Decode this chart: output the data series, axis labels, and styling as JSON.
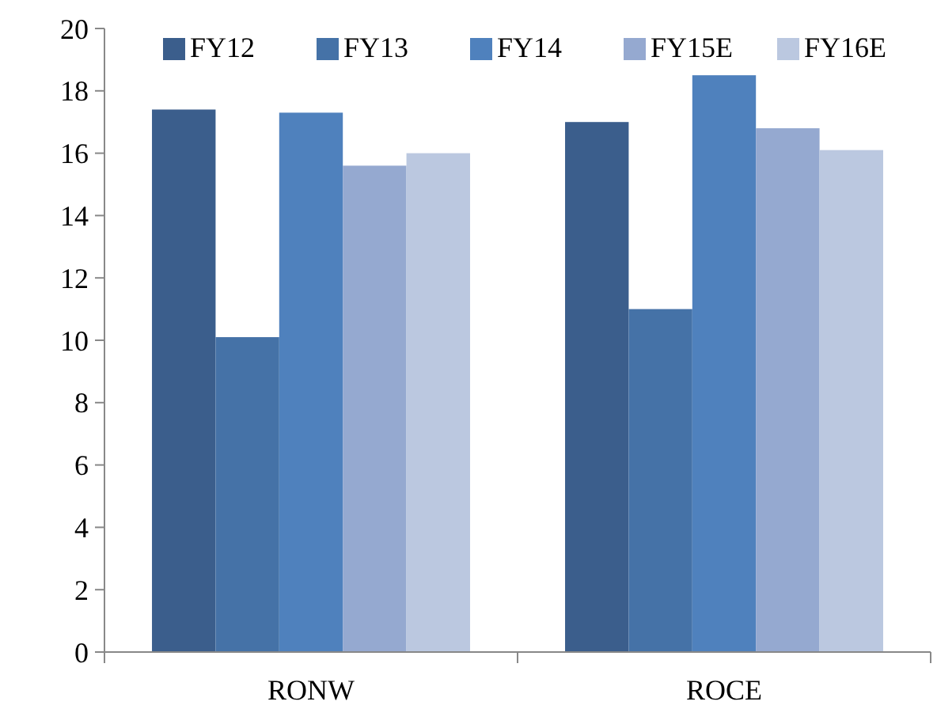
{
  "chart_data": {
    "type": "bar",
    "categories": [
      "RONW",
      "ROCE"
    ],
    "series": [
      {
        "name": "FY12",
        "color": "#3b5e8c",
        "values": [
          17.4,
          17.0
        ]
      },
      {
        "name": "FY13",
        "color": "#4572a7",
        "values": [
          10.1,
          11.0
        ]
      },
      {
        "name": "FY14",
        "color": "#4f81bd",
        "values": [
          17.3,
          18.5
        ]
      },
      {
        "name": "FY15E",
        "color": "#95a9d0",
        "values": [
          15.6,
          16.8
        ]
      },
      {
        "name": "FY16E",
        "color": "#bbc8e0",
        "values": [
          16.0,
          16.1
        ]
      }
    ],
    "ylim": [
      0,
      20
    ],
    "yticks": [
      0,
      2,
      4,
      6,
      8,
      10,
      12,
      14,
      16,
      18,
      20
    ],
    "grid": false,
    "legend": "top right"
  }
}
